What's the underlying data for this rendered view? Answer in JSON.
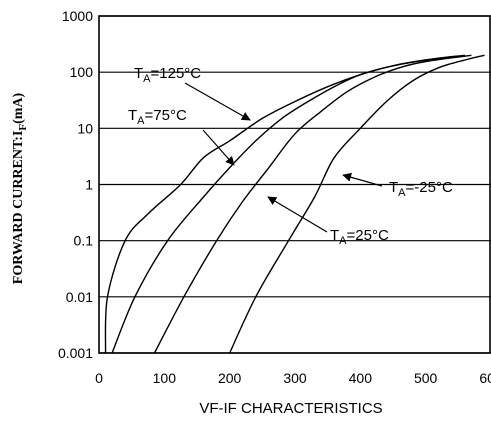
{
  "chart_data": {
    "type": "line",
    "title": "",
    "xlabel": "VF-IF CHARACTERISTICS",
    "ylabel": {
      "prefix": "FORWARD CURRENT:I",
      "subscript": "F",
      "suffix": "(mA)"
    },
    "xlim": [
      0,
      600
    ],
    "ylim": [
      0.001,
      1000
    ],
    "yscale": "log",
    "x_ticks": [
      "0",
      "100",
      "200",
      "300",
      "400",
      "500",
      "600"
    ],
    "y_ticks": [
      "0.001",
      "0.01",
      "0.1",
      "1",
      "10",
      "100",
      "1000"
    ],
    "grid": "horizontal",
    "series": [
      {
        "name": "TA=125°C",
        "points": [
          [
            10,
            0.001
          ],
          [
            13,
            0.01
          ],
          [
            40,
            0.1
          ],
          [
            75,
            0.3
          ],
          [
            125,
            1
          ],
          [
            160,
            3
          ],
          [
            200,
            6
          ],
          [
            250,
            15
          ],
          [
            300,
            30
          ],
          [
            350,
            55
          ],
          [
            400,
            90
          ],
          [
            450,
            130
          ],
          [
            500,
            165
          ],
          [
            550,
            195
          ]
        ]
      },
      {
        "name": "TA=75°C",
        "points": [
          [
            20,
            0.001
          ],
          [
            55,
            0.01
          ],
          [
            105,
            0.1
          ],
          [
            160,
            0.6
          ],
          [
            200,
            2
          ],
          [
            240,
            6
          ],
          [
            280,
            15
          ],
          [
            320,
            30
          ],
          [
            360,
            55
          ],
          [
            400,
            90
          ],
          [
            450,
            130
          ],
          [
            500,
            165
          ],
          [
            560,
            200
          ]
        ]
      },
      {
        "name": "TA=25°C",
        "points": [
          [
            85,
            0.001
          ],
          [
            130,
            0.01
          ],
          [
            180,
            0.1
          ],
          [
            220,
            0.5
          ],
          [
            260,
            2
          ],
          [
            300,
            8
          ],
          [
            340,
            20
          ],
          [
            380,
            45
          ],
          [
            420,
            80
          ],
          [
            460,
            120
          ],
          [
            500,
            155
          ],
          [
            570,
            200
          ]
        ]
      },
      {
        "name": "TA=-25°C",
        "points": [
          [
            200,
            0.001
          ],
          [
            240,
            0.01
          ],
          [
            290,
            0.1
          ],
          [
            330,
            0.6
          ],
          [
            360,
            3
          ],
          [
            400,
            10
          ],
          [
            440,
            30
          ],
          [
            480,
            70
          ],
          [
            520,
            120
          ],
          [
            560,
            165
          ],
          [
            590,
            200
          ]
        ]
      }
    ],
    "annotations": [
      {
        "label": "TA=125°C",
        "parts": {
          "main": "T",
          "sub": "A",
          "rest": "=125°C"
        }
      },
      {
        "label": "TA=75°C",
        "parts": {
          "main": "T",
          "sub": "A",
          "rest": "=75°C"
        }
      },
      {
        "label": "TA=-25°C",
        "parts": {
          "main": "T",
          "sub": "A",
          "rest": "=-25°C"
        }
      },
      {
        "label": "TA=25°C",
        "parts": {
          "main": "T",
          "sub": "A",
          "rest": "=25°C"
        }
      }
    ],
    "colors": {
      "lines": "#000000",
      "grid": "#000000",
      "background": "#ffffff"
    }
  }
}
